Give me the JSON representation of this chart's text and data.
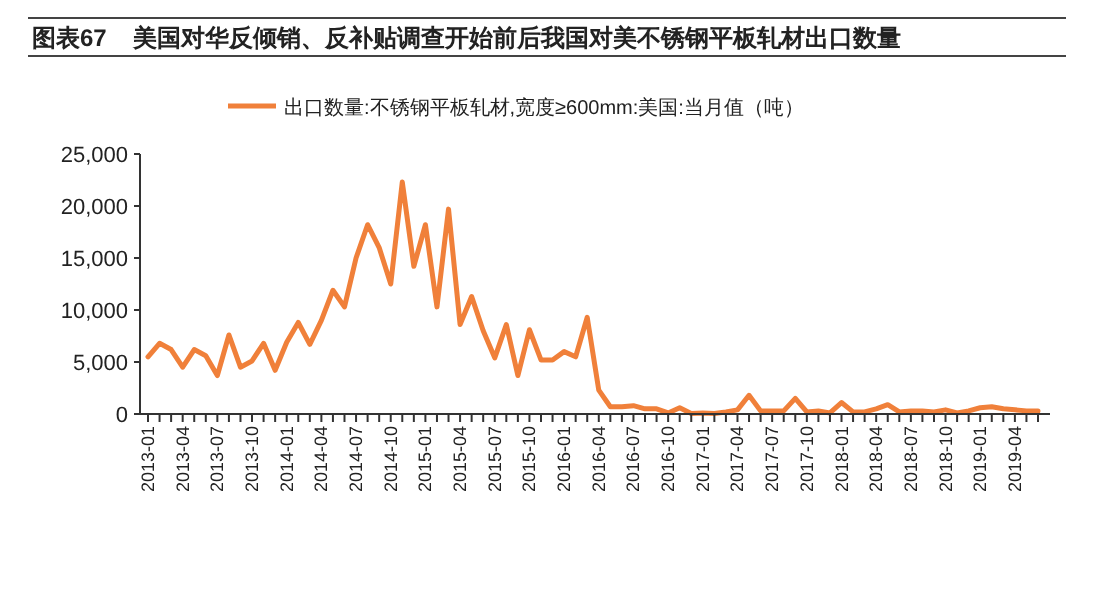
{
  "chart_data": {
    "type": "line",
    "title": "图表67    美国对华反倾销、反补贴调查开始前后我国对美不锈钢平板轧材出口数量",
    "categories": [
      "2013-01",
      null,
      null,
      "2013-04",
      null,
      null,
      "2013-07",
      null,
      null,
      "2013-10",
      null,
      null,
      "2014-01",
      null,
      null,
      "2014-04",
      null,
      null,
      "2014-07",
      null,
      null,
      "2014-10",
      null,
      null,
      "2015-01",
      null,
      null,
      "2015-04",
      null,
      null,
      "2015-07",
      null,
      null,
      "2015-10",
      null,
      null,
      "2016-01",
      null,
      null,
      "2016-04",
      null,
      null,
      "2016-07",
      null,
      null,
      "2016-10",
      null,
      null,
      "2017-01",
      null,
      null,
      "2017-04",
      null,
      null,
      "2017-07",
      null,
      null,
      "2017-10",
      null,
      null,
      "2018-01",
      null,
      null,
      "2018-04",
      null,
      null,
      "2018-07",
      null,
      null,
      "2018-10",
      null,
      null,
      "2019-01",
      null,
      null,
      "2019-04",
      null,
      null
    ],
    "series": [
      {
        "name": "出口数量:不锈钢平板轧材,宽度≥600mm:美国:当月值（吨）",
        "color": "#f0803a",
        "values": [
          5500,
          6800,
          6200,
          4500,
          6200,
          5600,
          3700,
          7600,
          4500,
          5100,
          6800,
          4200,
          6900,
          8800,
          6700,
          9000,
          11900,
          10300,
          15000,
          18200,
          16000,
          12500,
          22300,
          14200,
          18200,
          10300,
          19700,
          8600,
          11300,
          8000,
          5400,
          8600,
          3700,
          8100,
          5200,
          5200,
          6000,
          5500,
          9300,
          2300,
          700,
          700,
          800,
          500,
          500,
          100,
          600,
          50,
          100,
          50,
          200,
          400,
          1800,
          300,
          300,
          300,
          1500,
          200,
          300,
          100,
          1100,
          200,
          200,
          500,
          900,
          200,
          300,
          300,
          200,
          400,
          100,
          300,
          600,
          700,
          500,
          400,
          300,
          300
        ]
      }
    ],
    "ylim": [
      0,
      25000
    ],
    "yticks": [
      {
        "value": 0,
        "label": "0"
      },
      {
        "value": 5000,
        "label": "5,000"
      },
      {
        "value": 10000,
        "label": "10,000"
      },
      {
        "value": 15000,
        "label": "15,000"
      },
      {
        "value": 20000,
        "label": "20,000"
      },
      {
        "value": 25000,
        "label": "25,000"
      }
    ],
    "legend": "top",
    "grid": false,
    "marker": "none",
    "line_style": "solid"
  }
}
